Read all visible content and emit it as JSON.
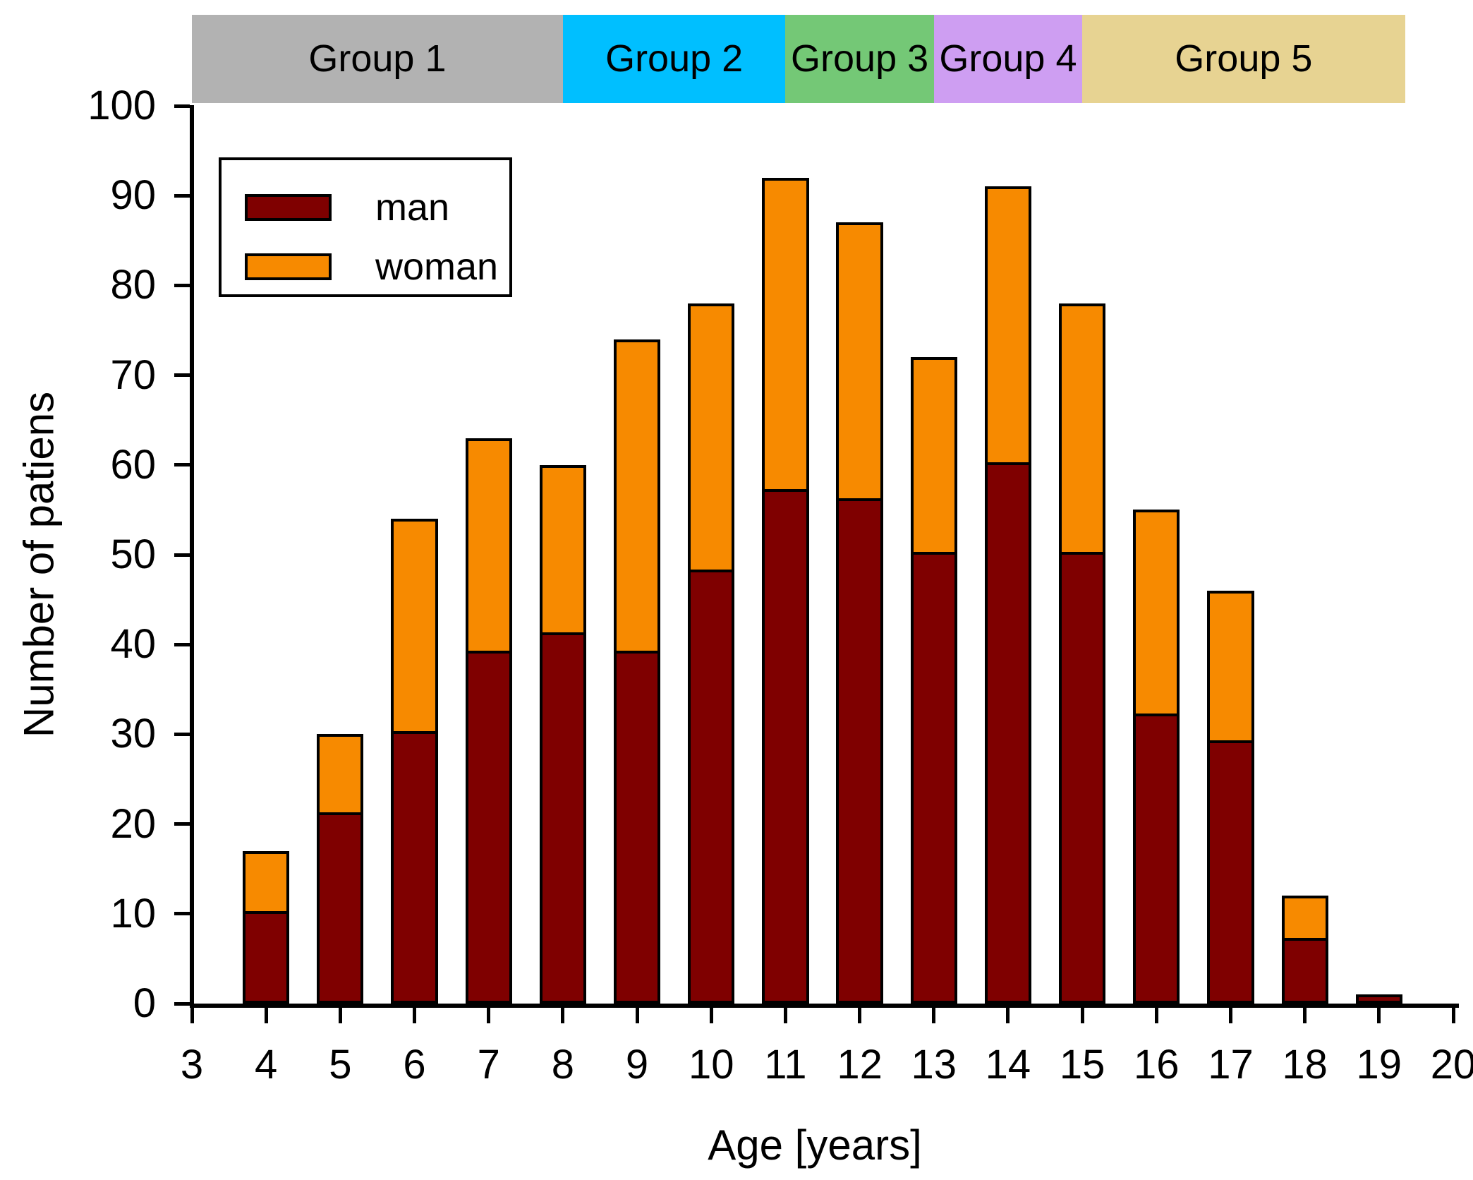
{
  "chart_data": {
    "type": "bar",
    "stacked": true,
    "title": "",
    "xlabel": "Age [years]",
    "ylabel": "Number of patiens",
    "x": [
      4,
      5,
      6,
      7,
      8,
      9,
      10,
      11,
      12,
      13,
      14,
      15,
      16,
      17,
      18,
      19
    ],
    "series": [
      {
        "name": "man",
        "color": "#7F0000",
        "values": [
          10,
          21,
          30,
          39,
          41,
          39,
          48,
          57,
          56,
          50,
          60,
          50,
          32,
          29,
          7,
          1
        ]
      },
      {
        "name": "woman",
        "color": "#F78A00",
        "values": [
          7,
          9,
          24,
          24,
          19,
          35,
          30,
          35,
          31,
          22,
          31,
          28,
          23,
          17,
          5,
          0
        ]
      }
    ],
    "totals": [
      17,
      30,
      54,
      63,
      60,
      74,
      78,
      92,
      87,
      72,
      91,
      78,
      55,
      46,
      12,
      1
    ],
    "xlim": [
      3,
      20
    ],
    "ylim": [
      0,
      100
    ],
    "xticks": [
      3,
      4,
      5,
      6,
      7,
      8,
      9,
      10,
      11,
      12,
      13,
      14,
      15,
      16,
      17,
      18,
      19,
      20
    ],
    "yticks": [
      0,
      10,
      20,
      30,
      40,
      50,
      60,
      70,
      80,
      90,
      100
    ],
    "bar_width_units": 0.63,
    "grid": false,
    "axis_color": "#000000",
    "groups": [
      {
        "label": "Group 1",
        "color": "#B2B2B2",
        "from": 3,
        "to": 8
      },
      {
        "label": "Group 2",
        "color": "#00BFFF",
        "from": 8,
        "to": 11
      },
      {
        "label": "Group 3",
        "color": "#74C876",
        "from": 11,
        "to": 13
      },
      {
        "label": "Group 4",
        "color": "#CE9EF2",
        "from": 13,
        "to": 15
      },
      {
        "label": "Group 5",
        "color": "#E7D392",
        "from": 15,
        "to": 19.35
      }
    ],
    "legend": {
      "position": "upper-left",
      "entries": [
        {
          "label": "man"
        },
        {
          "label": "woman"
        }
      ]
    }
  }
}
